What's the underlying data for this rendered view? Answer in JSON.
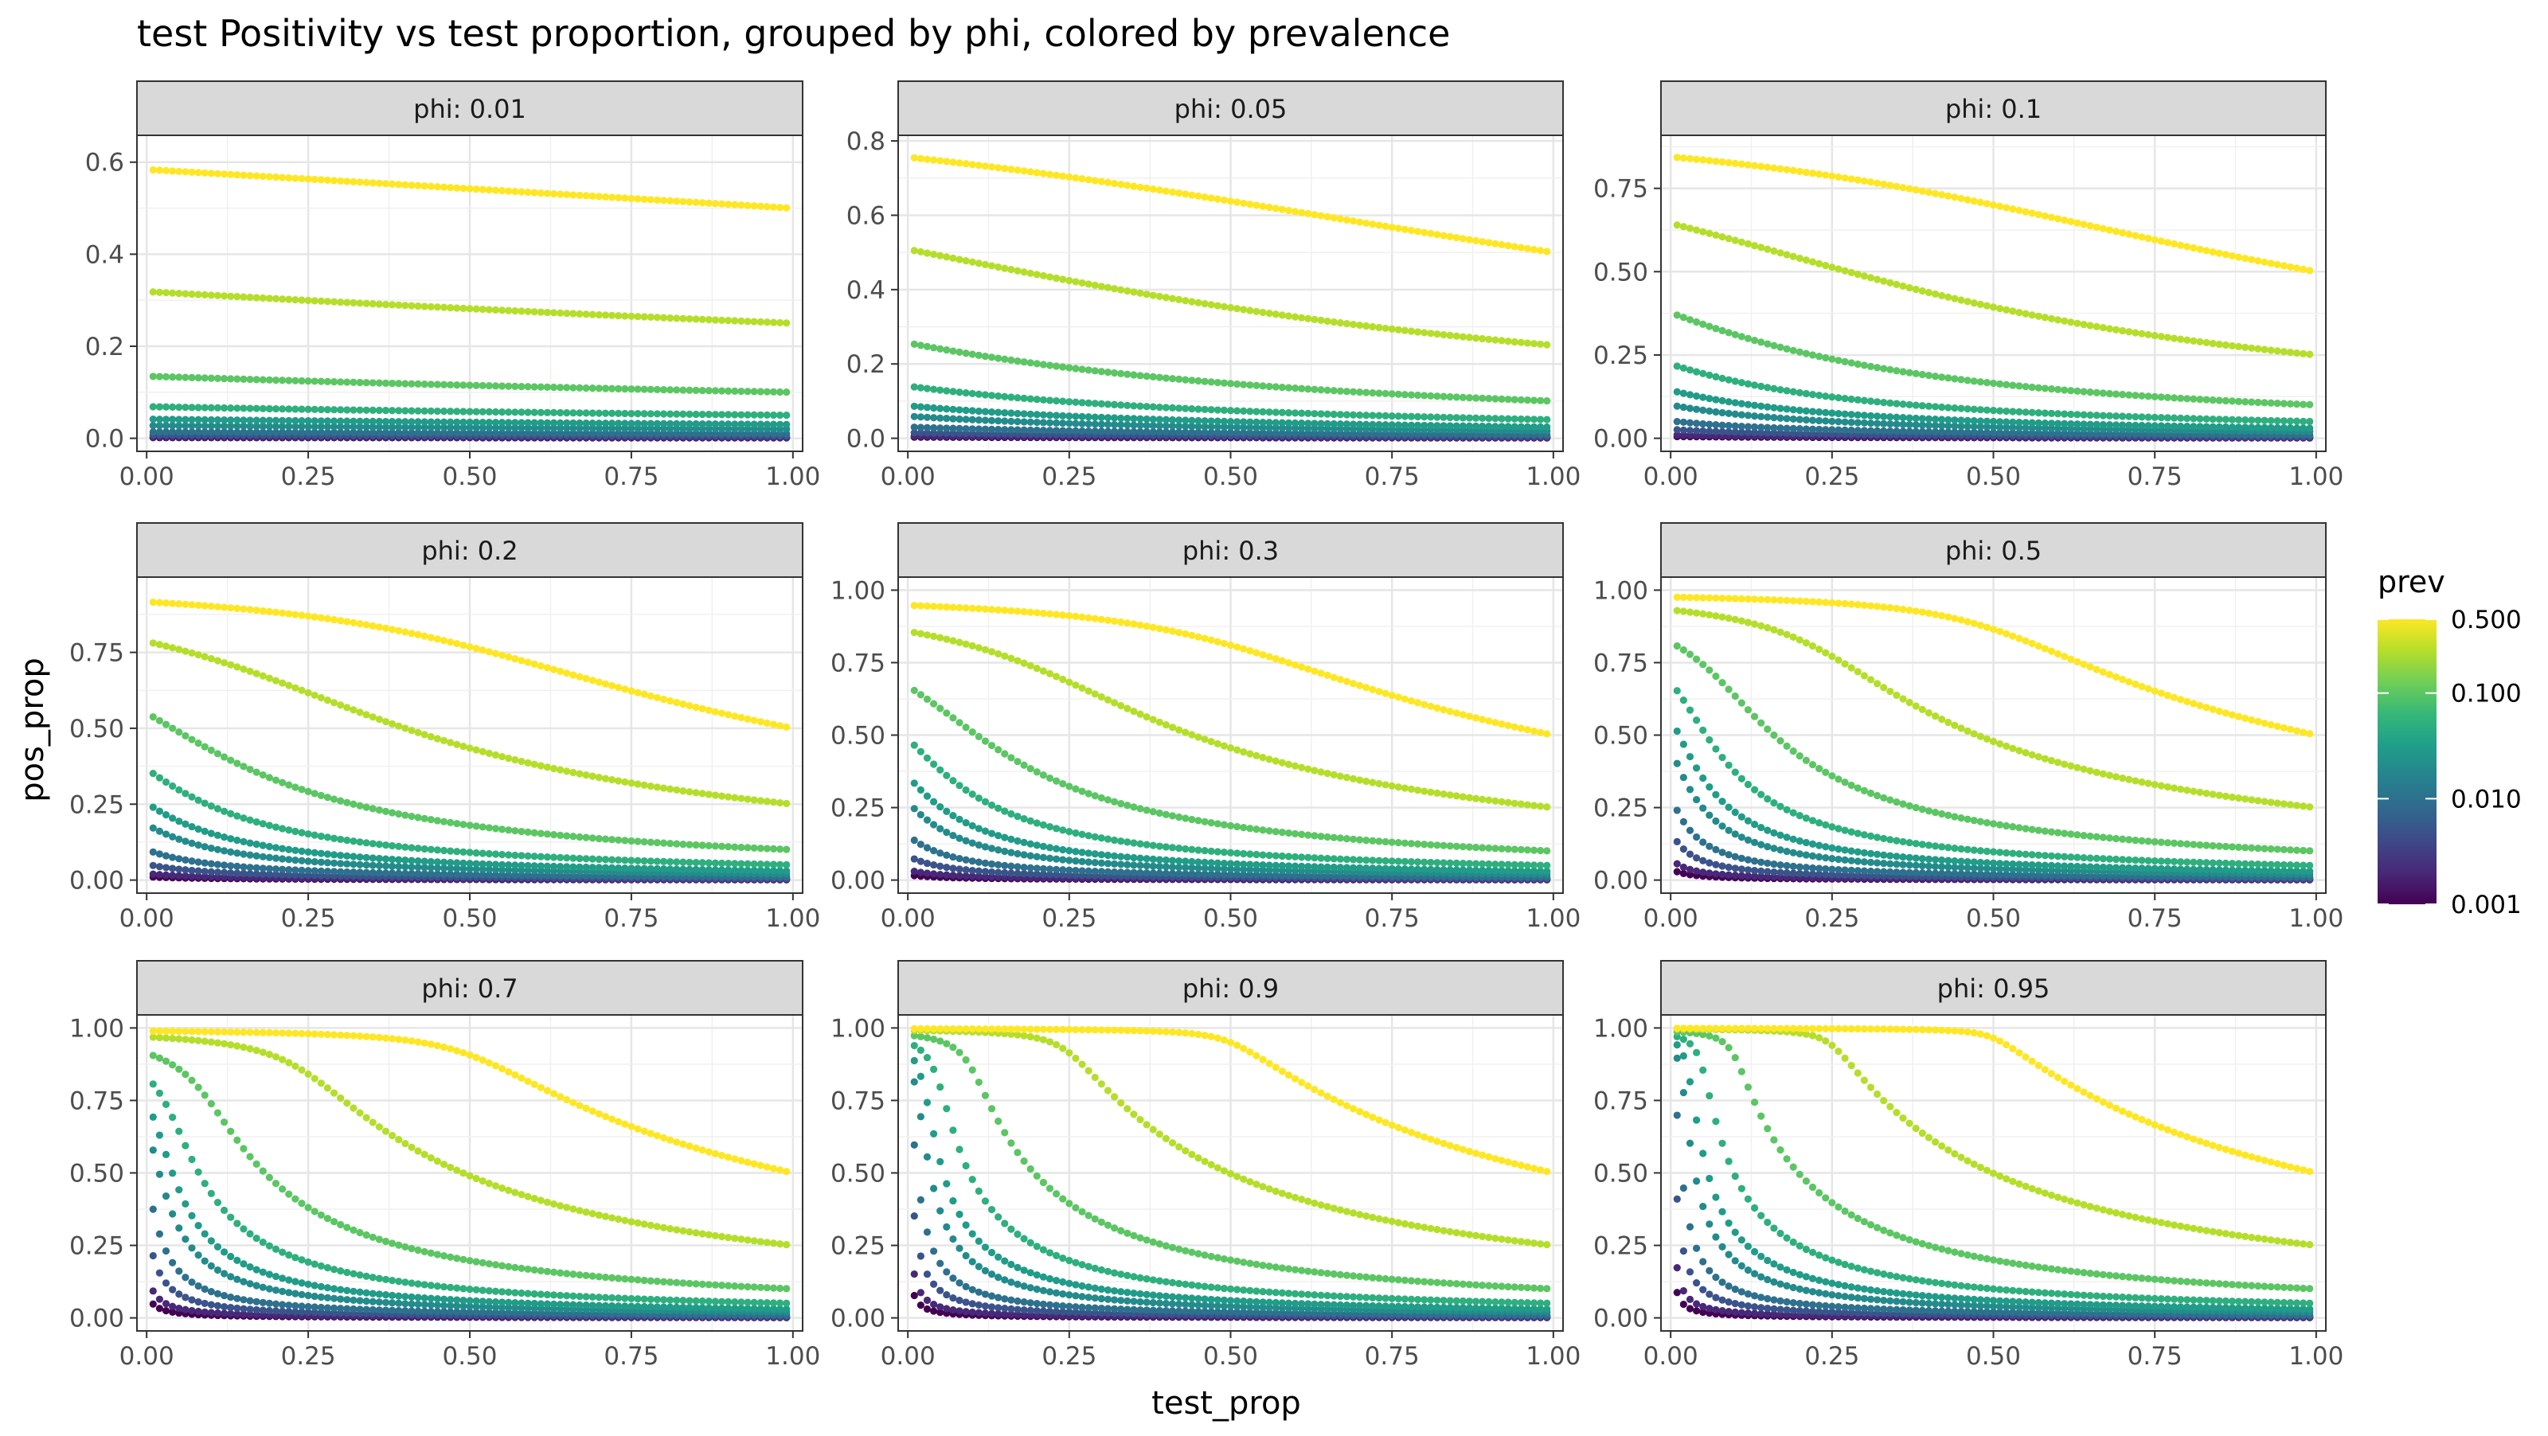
{
  "chart_data": {
    "type": "scatter",
    "title": "test Positivity vs test proportion, grouped by phi, colored by prevalence",
    "xlabel": "test_prop",
    "ylabel": "pos_prop",
    "x_range": [
      0.01,
      0.99
    ],
    "x_ticks": [
      "0.00",
      "0.25",
      "0.50",
      "0.75",
      "1.00"
    ],
    "grid": true,
    "legend": {
      "title": "prev",
      "placement": "right",
      "scale": "log",
      "tick_labels": [
        "0.500",
        "0.100",
        "0.010",
        "0.001"
      ],
      "tick_values": [
        0.5,
        0.1,
        0.01,
        0.001
      ],
      "colors": [
        "#440154",
        "#482878",
        "#3e4989",
        "#31688e",
        "#26828e",
        "#1f9e89",
        "#35b779",
        "#6ece58",
        "#b5de2b",
        "#fde725"
      ]
    },
    "prev_levels": [
      0.001,
      0.002,
      0.005,
      0.01,
      0.02,
      0.03,
      0.05,
      0.1,
      0.25,
      0.5
    ],
    "facets": [
      {
        "label": "phi: 0.01",
        "phi": 0.01,
        "ylim": [
          0,
          0.63
        ],
        "y_ticks": [
          "0.0",
          "0.2",
          "0.4",
          "0.6"
        ]
      },
      {
        "label": "phi: 0.05",
        "phi": 0.05,
        "ylim": [
          0,
          0.78
        ],
        "y_ticks": [
          "0.0",
          "0.2",
          "0.4",
          "0.6",
          "0.8"
        ]
      },
      {
        "label": "phi: 0.1",
        "phi": 0.1,
        "ylim": [
          0,
          0.87
        ],
        "y_ticks": [
          "0.00",
          "0.25",
          "0.50",
          "0.75"
        ]
      },
      {
        "label": "phi: 0.2",
        "phi": 0.2,
        "ylim": [
          0,
          0.955
        ],
        "y_ticks": [
          "0.00",
          "0.25",
          "0.50",
          "0.75"
        ]
      },
      {
        "label": "phi: 0.3",
        "phi": 0.3,
        "ylim": [
          0,
          1.0
        ],
        "y_ticks": [
          "0.00",
          "0.25",
          "0.50",
          "0.75",
          "1.00"
        ]
      },
      {
        "label": "phi: 0.5",
        "phi": 0.5,
        "ylim": [
          0,
          1.0
        ],
        "y_ticks": [
          "0.00",
          "0.25",
          "0.50",
          "0.75",
          "1.00"
        ]
      },
      {
        "label": "phi: 0.7",
        "phi": 0.7,
        "ylim": [
          0,
          1.0
        ],
        "y_ticks": [
          "0.00",
          "0.25",
          "0.50",
          "0.75",
          "1.00"
        ]
      },
      {
        "label": "phi: 0.9",
        "phi": 0.9,
        "ylim": [
          0,
          1.0
        ],
        "y_ticks": [
          "0.00",
          "0.25",
          "0.50",
          "0.75",
          "1.00"
        ]
      },
      {
        "label": "phi: 0.95",
        "phi": 0.95,
        "ylim": [
          0,
          1.0
        ],
        "y_ticks": [
          "0.00",
          "0.25",
          "0.50",
          "0.75",
          "1.00"
        ]
      }
    ]
  }
}
